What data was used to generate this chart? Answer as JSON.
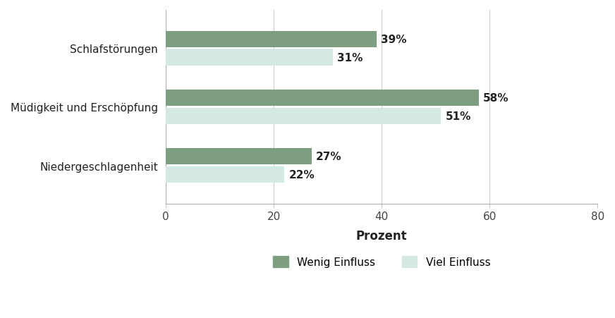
{
  "categories": [
    "Niedergeschlagenheit",
    "Müdigkeit und Erschöpfung",
    "Schlafstörungen"
  ],
  "wenig_einfluss": [
    27,
    58,
    39
  ],
  "viel_einfluss": [
    22,
    51,
    31
  ],
  "wenig_color": "#7d9e80",
  "viel_color": "#d6e8e4",
  "xlabel": "Prozent",
  "xlim": [
    0,
    80
  ],
  "xticks": [
    0,
    20,
    40,
    60,
    80
  ],
  "bar_height": 0.28,
  "bar_gap": 0.03,
  "background_color": "#ffffff",
  "label_fontsize": 11,
  "tick_fontsize": 11,
  "xlabel_fontsize": 12,
  "legend_labels": [
    "Wenig Einfluss",
    "Viel Einfluss"
  ],
  "category_fontsize": 11,
  "value_label_fontsize": 11,
  "grid_color": "#c8c8c8",
  "spine_color": "#b0b0b0"
}
